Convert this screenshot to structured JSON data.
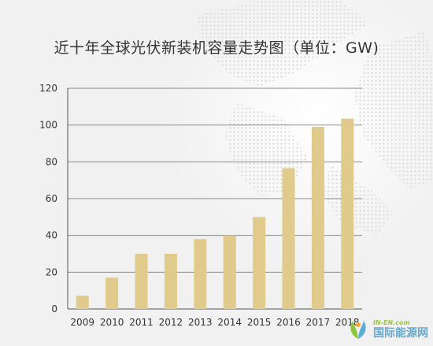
{
  "chart_data": {
    "type": "bar",
    "title": "近十年全球光伏新装机容量走势图（单位：GW)",
    "categories": [
      "2009",
      "2010",
      "2011",
      "2012",
      "2013",
      "2014",
      "2015",
      "2016",
      "2017",
      "2018"
    ],
    "values": [
      7.2,
      17,
      30,
      30,
      38,
      40,
      50,
      76.5,
      99,
      103.5
    ],
    "ylim": [
      0,
      120
    ],
    "yticks": [
      0,
      20,
      40,
      60,
      80,
      100,
      120
    ],
    "grid": true,
    "bar_color": "#e0cb8c",
    "grid_color": "#8a8a8a"
  },
  "watermark": {
    "url": "IN-EN.com",
    "name": "国际能源网"
  }
}
